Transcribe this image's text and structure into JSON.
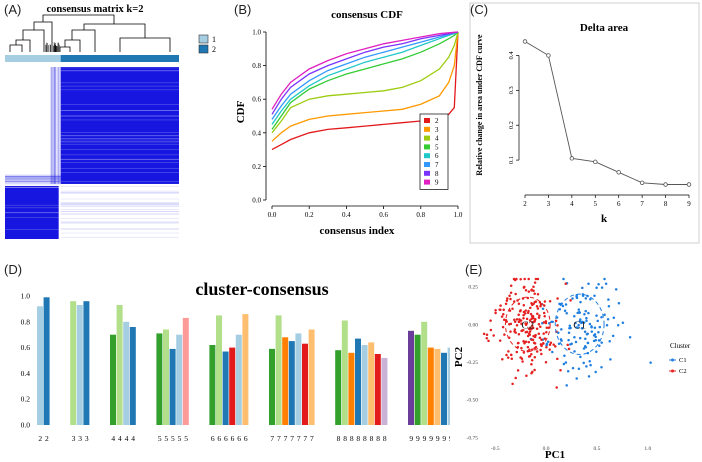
{
  "panels": [
    {
      "label": "(A)"
    },
    {
      "label": "(B)"
    },
    {
      "label": "(C)"
    },
    {
      "label": "(D)"
    },
    {
      "label": "(E)"
    }
  ],
  "colors": {
    "matrix_blue": "#1616e0",
    "matrix_light": "#ffffff",
    "track_light": "#a6cee3",
    "track_dark": "#1f78b4",
    "scatter_c1": "#1f7fe0",
    "scatter_c2": "#e62020"
  },
  "chart_data": [
    {
      "panel": "A",
      "type": "heatmap",
      "title": "consensus matrix k=2",
      "legend": [
        {
          "label": "1",
          "color": "#a6cee3"
        },
        {
          "label": "2",
          "color": "#1f78b4"
        }
      ],
      "cluster_fraction": {
        "cluster1": 0.32,
        "cluster2": 0.68
      }
    },
    {
      "panel": "B",
      "type": "line",
      "title": "consensus CDF",
      "xlabel": "consensus index",
      "ylabel": "CDF",
      "xlim": [
        0,
        1
      ],
      "ylim": [
        0,
        1
      ],
      "xticks": [
        "0.0",
        "0.2",
        "0.4",
        "0.6",
        "0.8",
        "1.0"
      ],
      "yticks": [
        "0.0",
        "0.2",
        "0.4",
        "0.6",
        "0.8",
        "1.0"
      ],
      "x": [
        0.0,
        0.05,
        0.1,
        0.2,
        0.3,
        0.4,
        0.5,
        0.6,
        0.7,
        0.8,
        0.9,
        0.95,
        0.98,
        1.0
      ],
      "series": [
        {
          "name": "2",
          "color": "#e31a1c",
          "values": [
            0.3,
            0.33,
            0.36,
            0.4,
            0.42,
            0.43,
            0.44,
            0.45,
            0.46,
            0.47,
            0.49,
            0.51,
            0.55,
            1.0
          ]
        },
        {
          "name": "3",
          "color": "#ff9900",
          "values": [
            0.35,
            0.4,
            0.44,
            0.48,
            0.5,
            0.51,
            0.52,
            0.53,
            0.54,
            0.57,
            0.62,
            0.7,
            0.8,
            1.0
          ]
        },
        {
          "name": "4",
          "color": "#9ccc10",
          "values": [
            0.4,
            0.47,
            0.55,
            0.6,
            0.62,
            0.63,
            0.64,
            0.65,
            0.67,
            0.71,
            0.78,
            0.85,
            0.92,
            1.0
          ]
        },
        {
          "name": "5",
          "color": "#33cc33",
          "values": [
            0.42,
            0.5,
            0.58,
            0.66,
            0.71,
            0.75,
            0.78,
            0.81,
            0.84,
            0.88,
            0.93,
            0.96,
            0.98,
            1.0
          ]
        },
        {
          "name": "6",
          "color": "#20c8c8",
          "values": [
            0.45,
            0.53,
            0.6,
            0.68,
            0.74,
            0.78,
            0.82,
            0.85,
            0.88,
            0.92,
            0.96,
            0.98,
            0.99,
            1.0
          ]
        },
        {
          "name": "7",
          "color": "#3399ff",
          "values": [
            0.48,
            0.56,
            0.63,
            0.71,
            0.77,
            0.81,
            0.85,
            0.88,
            0.91,
            0.94,
            0.97,
            0.985,
            0.995,
            1.0
          ]
        },
        {
          "name": "8",
          "color": "#7a33ff",
          "values": [
            0.51,
            0.6,
            0.67,
            0.75,
            0.8,
            0.84,
            0.88,
            0.91,
            0.93,
            0.96,
            0.98,
            0.99,
            0.997,
            1.0
          ]
        },
        {
          "name": "9",
          "color": "#e020c0",
          "values": [
            0.54,
            0.63,
            0.7,
            0.78,
            0.83,
            0.87,
            0.9,
            0.93,
            0.95,
            0.97,
            0.99,
            0.995,
            0.998,
            1.0
          ]
        }
      ]
    },
    {
      "panel": "C",
      "type": "line",
      "title": "Delta area",
      "xlabel": "k",
      "ylabel": "Relative change in area under CDF curve",
      "xticks": [
        "2",
        "3",
        "4",
        "5",
        "6",
        "7",
        "8",
        "9"
      ],
      "yticks": [
        "0.1",
        "0.2",
        "0.3",
        "0.4"
      ],
      "xlim": [
        2,
        9
      ],
      "ylim": [
        0.02,
        0.45
      ],
      "x": [
        2,
        3,
        4,
        5,
        6,
        7,
        8,
        9
      ],
      "values": [
        0.44,
        0.4,
        0.105,
        0.095,
        0.065,
        0.035,
        0.03,
        0.03
      ]
    },
    {
      "panel": "D",
      "type": "bar",
      "title": "cluster-consensus",
      "yticks": [
        "0.0",
        "0.2",
        "0.4",
        "0.6",
        "0.8",
        "1.0"
      ],
      "ylim": [
        0,
        1
      ],
      "groups": [
        {
          "k": "2",
          "values": [
            0.92,
            0.99
          ],
          "colors": [
            "#a6cee3",
            "#1f78b4"
          ]
        },
        {
          "k": "3",
          "values": [
            0.96,
            0.93,
            0.96
          ],
          "colors": [
            "#b2df8a",
            "#a6cee3",
            "#1f78b4"
          ]
        },
        {
          "k": "4",
          "values": [
            0.7,
            0.93,
            0.8,
            0.76
          ],
          "colors": [
            "#33a02c",
            "#b2df8a",
            "#a6cee3",
            "#1f78b4"
          ]
        },
        {
          "k": "5",
          "values": [
            0.71,
            0.74,
            0.59,
            0.7,
            0.83
          ],
          "colors": [
            "#33a02c",
            "#b2df8a",
            "#1f78b4",
            "#a6cee3",
            "#fb9a99"
          ]
        },
        {
          "k": "6",
          "values": [
            0.62,
            0.85,
            0.57,
            0.6,
            0.7,
            0.86
          ],
          "colors": [
            "#33a02c",
            "#b2df8a",
            "#1f78b4",
            "#e31a1c",
            "#a6cee3",
            "#fdbf6f"
          ]
        },
        {
          "k": "7",
          "values": [
            0.59,
            0.85,
            0.68,
            0.65,
            0.71,
            0.63,
            0.74
          ],
          "colors": [
            "#33a02c",
            "#b2df8a",
            "#ff7f00",
            "#1f78b4",
            "#a6cee3",
            "#e31a1c",
            "#fdbf6f"
          ]
        },
        {
          "k": "8",
          "values": [
            0.58,
            0.81,
            0.56,
            0.67,
            0.62,
            0.64,
            0.55,
            0.52
          ],
          "colors": [
            "#33a02c",
            "#b2df8a",
            "#ff7f00",
            "#1f78b4",
            "#a6cee3",
            "#fdbf6f",
            "#e31a1c",
            "#cab2d6"
          ]
        },
        {
          "k": "9",
          "values": [
            0.73,
            0.7,
            0.8,
            0.6,
            0.59,
            0.56,
            0.6,
            0.57,
            0.71
          ],
          "colors": [
            "#6a3d9a",
            "#33a02c",
            "#b2df8a",
            "#ff7f00",
            "#fdbf6f",
            "#1f78b4",
            "#a6cee3",
            "#e31a1c",
            "#cab2d6"
          ]
        }
      ]
    },
    {
      "panel": "E",
      "type": "scatter",
      "xlabel": "PC1",
      "ylabel": "PC2",
      "xticks": [
        "-0.5",
        "0.0",
        "0.5",
        "1.0"
      ],
      "yticks": [
        "0.25",
        "0.00",
        "-0.25",
        "-0.50",
        "-0.75"
      ],
      "xlim": [
        -0.65,
        1.12
      ],
      "ylim": [
        -0.78,
        0.32
      ],
      "legend_title": "Cluster",
      "clusters": [
        {
          "name": "C1",
          "label": "C1",
          "color": "#1f7fe0",
          "center": [
            0.33,
            0.0
          ],
          "spread": [
            0.17,
            0.15
          ],
          "n": 140,
          "ellipse": [
            0.24,
            0.2
          ]
        },
        {
          "name": "C2",
          "label": "C2",
          "color": "#e62020",
          "center": [
            -0.18,
            0.0
          ],
          "spread": [
            0.16,
            0.14
          ],
          "n": 220,
          "ellipse": [
            0.22,
            0.18
          ]
        }
      ]
    }
  ]
}
